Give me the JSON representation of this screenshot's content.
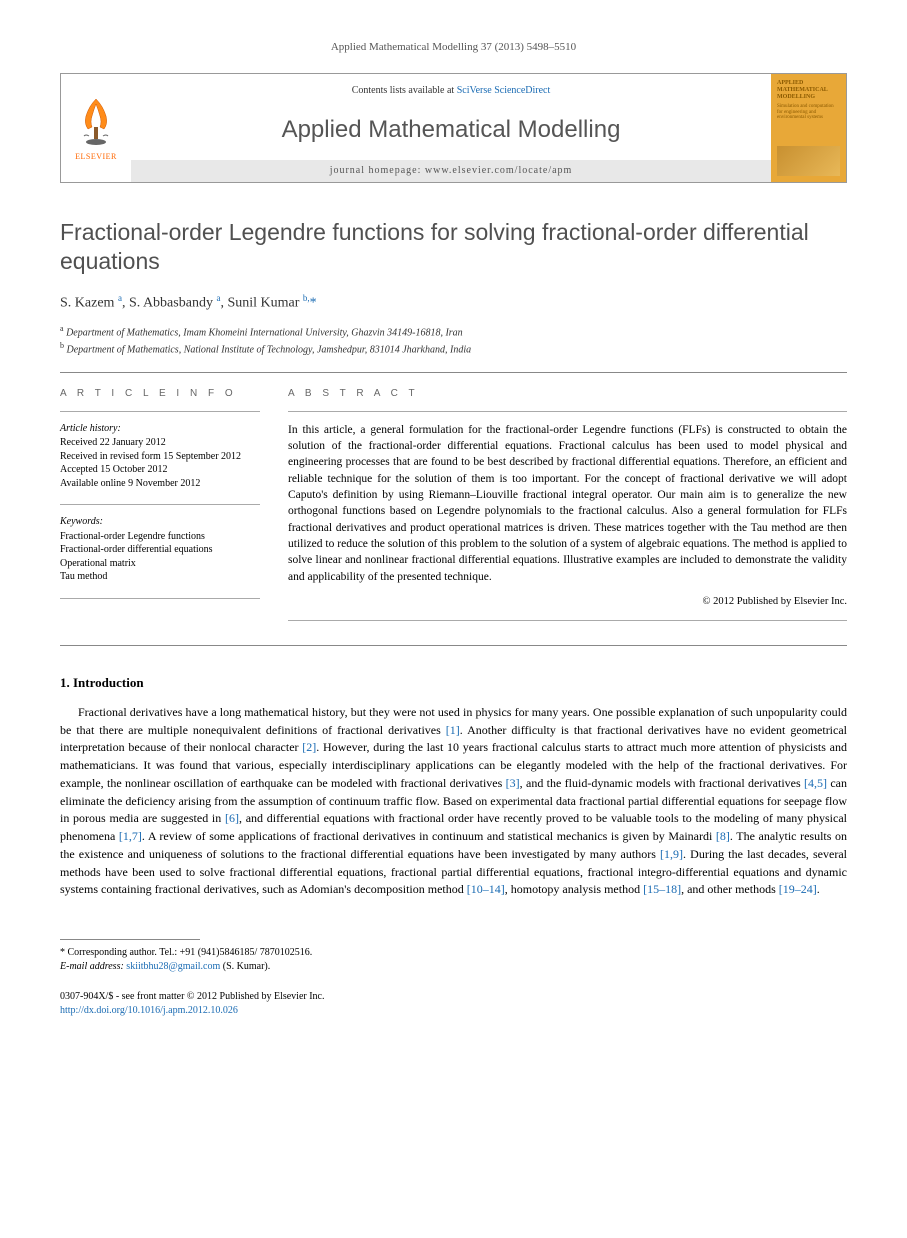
{
  "journal_ref": "Applied Mathematical Modelling 37 (2013) 5498–5510",
  "header": {
    "contents_prefix": "Contents lists available at ",
    "contents_link": "SciVerse ScienceDirect",
    "journal_title": "Applied Mathematical Modelling",
    "homepage_prefix": "journal homepage: ",
    "homepage_url": "www.elsevier.com/locate/apm",
    "elsevier_label": "ELSEVIER",
    "cover_title": "APPLIED MATHEMATICAL MODELLING",
    "cover_sub": "Simulation and computation for engineering and environmental systems"
  },
  "title": "Fractional-order Legendre functions for solving fractional-order differential equations",
  "authors_html": "S. Kazem <sup>a</sup>, S. Abbasbandy <sup>a</sup>, Sunil Kumar <sup>b,</sup><span class='star'>*</span>",
  "affiliations": {
    "a": "Department of Mathematics, Imam Khomeini International University, Ghazvin 34149-16818, Iran",
    "b": "Department of Mathematics, National Institute of Technology, Jamshedpur, 831014 Jharkhand, India"
  },
  "article_info": {
    "heading": "A R T I C L E   I N F O",
    "history_label": "Article history:",
    "received": "Received 22 January 2012",
    "revised": "Received in revised form 15 September 2012",
    "accepted": "Accepted 15 October 2012",
    "online": "Available online 9 November 2012",
    "keywords_label": "Keywords:",
    "keywords": [
      "Fractional-order Legendre functions",
      "Fractional-order differential equations",
      "Operational matrix",
      "Tau method"
    ]
  },
  "abstract": {
    "heading": "A B S T R A C T",
    "text": "In this article, a general formulation for the fractional-order Legendre functions (FLFs) is constructed to obtain the solution of the fractional-order differential equations. Fractional calculus has been used to model physical and engineering processes that are found to be best described by fractional differential equations. Therefore, an efficient and reliable technique for the solution of them is too important. For the concept of fractional derivative we will adopt Caputo's definition by using Riemann–Liouville fractional integral operator. Our main aim is to generalize the new orthogonal functions based on Legendre polynomials to the fractional calculus. Also a general formulation for FLFs fractional derivatives and product operational matrices is driven. These matrices together with the Tau method are then utilized to reduce the solution of this problem to the solution of a system of algebraic equations. The method is applied to solve linear and nonlinear fractional differential equations. Illustrative examples are included to demonstrate the validity and applicability of the presented technique.",
    "copyright": "© 2012 Published by Elsevier Inc."
  },
  "section1": {
    "heading": "1. Introduction",
    "text": "Fractional derivatives have a long mathematical history, but they were not used in physics for many years. One possible explanation of such unpopularity could be that there are multiple nonequivalent definitions of fractional derivatives [1]. Another difficulty is that fractional derivatives have no evident geometrical interpretation because of their nonlocal character [2]. However, during the last 10 years fractional calculus starts to attract much more attention of physicists and mathematicians. It was found that various, especially interdisciplinary applications can be elegantly modeled with the help of the fractional derivatives. For example, the nonlinear oscillation of earthquake can be modeled with fractional derivatives [3], and the fluid-dynamic models with fractional derivatives [4,5] can eliminate the deficiency arising from the assumption of continuum traffic flow. Based on experimental data fractional partial differential equations for seepage flow in porous media are suggested in [6], and differential equations with fractional order have recently proved to be valuable tools to the modeling of many physical phenomena [1,7]. A review of some applications of fractional derivatives in continuum and statistical mechanics is given by Mainardi [8]. The analytic results on the existence and uniqueness of solutions to the fractional differential equations have been investigated by many authors [1,9]. During the last decades, several methods have been used to solve fractional differential equations, fractional partial differential equations, fractional integro-differential equations and dynamic systems containing fractional derivatives, such as Adomian's decomposition method [10–14], homotopy analysis method [15–18], and other methods [19–24]."
  },
  "footnote": {
    "corresp": "Corresponding author. Tel.: +91 (941)5846185/ 7870102516.",
    "email_label": "E-mail address:",
    "email": "skiitbhu28@gmail.com",
    "email_name": "(S. Kumar)."
  },
  "bottom": {
    "issn": "0307-904X/$ - see front matter © 2012 Published by Elsevier Inc.",
    "doi": "http://dx.doi.org/10.1016/j.apm.2012.10.026"
  },
  "colors": {
    "link": "#1a6bb3",
    "elsevier_orange": "#ff6600",
    "cover_bg": "#e8a838",
    "text": "#000000",
    "muted": "#555555",
    "rule": "#888888"
  },
  "refs_in_body": [
    "[1]",
    "[2]",
    "[3]",
    "[4,5]",
    "[6]",
    "[1,7]",
    "[8]",
    "[1,9]",
    "[10–14]",
    "[15–18]",
    "[19–24]"
  ]
}
